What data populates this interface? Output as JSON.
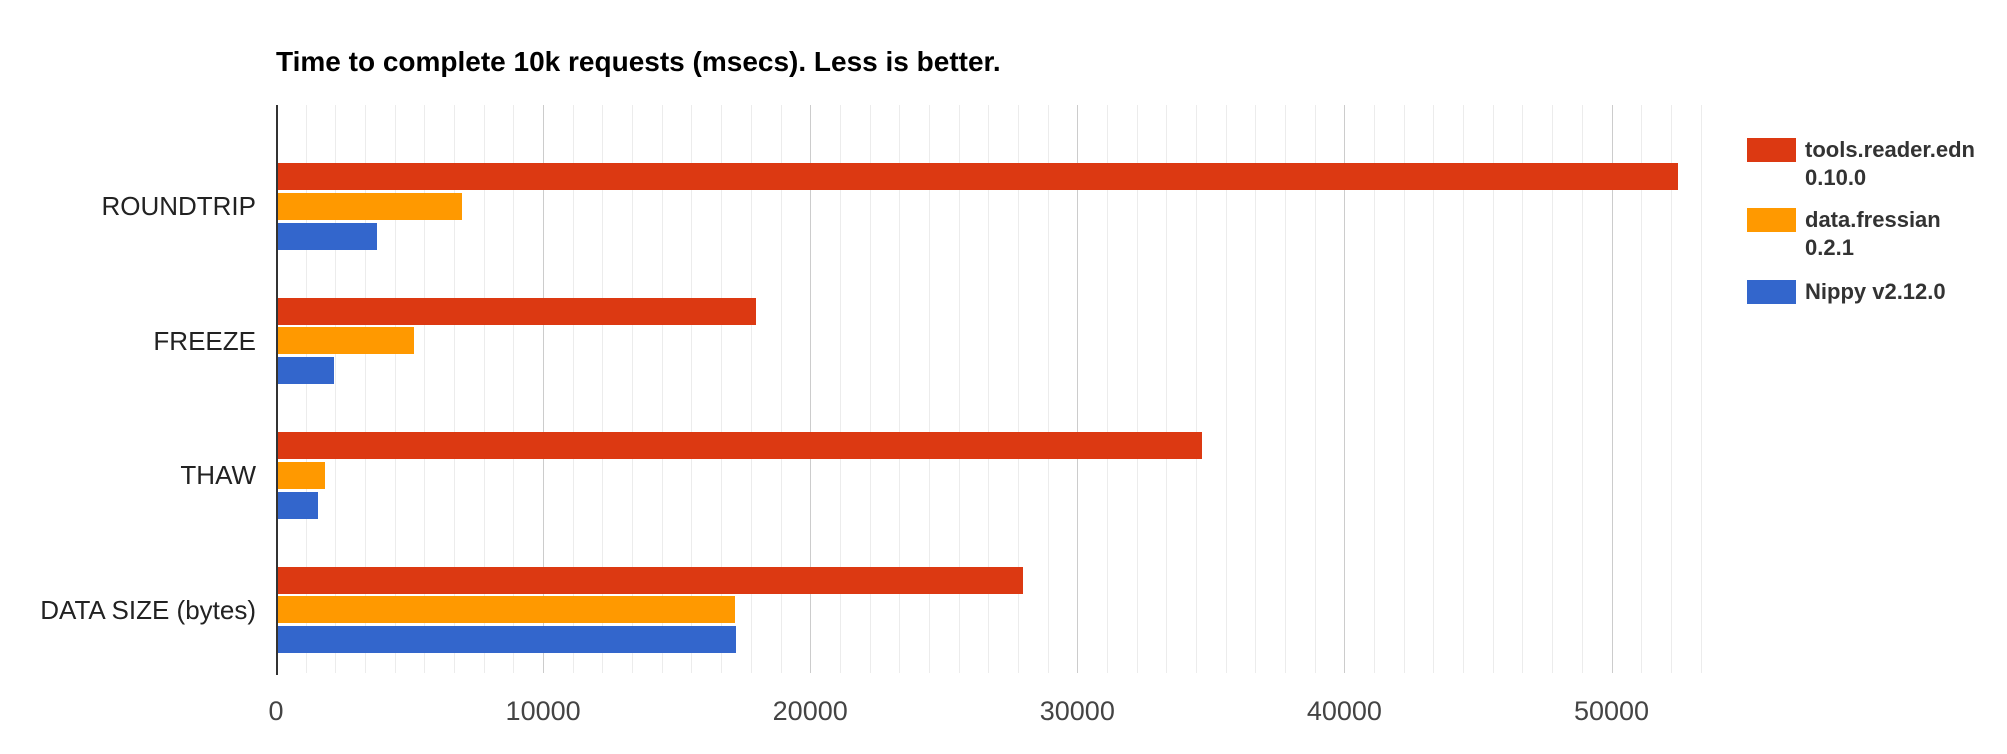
{
  "chart_data": {
    "type": "bar",
    "orientation": "horizontal",
    "title": "Time to complete 10k requests (msecs). Less is better.",
    "xlabel": "",
    "ylabel": "",
    "categories": [
      "ROUNDTRIP",
      "FREEZE",
      "THAW",
      "DATA SIZE (bytes)"
    ],
    "category_ids": [
      "roundtrip",
      "freeze",
      "thaw",
      "data-size-bytes"
    ],
    "series": [
      {
        "id": "tools-reader-edn",
        "name": "tools.reader.edn 0.10.0",
        "legend_lines": [
          "tools.reader.edn",
          "0.10.0"
        ],
        "color": "#DC3912",
        "values": [
          52400,
          17900,
          34600,
          27900
        ]
      },
      {
        "id": "data-fressian",
        "name": "data.fressian 0.2.1",
        "legend_lines": [
          "data.fressian",
          "0.2.1"
        ],
        "color": "#FF9900",
        "values": [
          6900,
          5100,
          1750,
          17100
        ]
      },
      {
        "id": "nippy",
        "name": "Nippy v2.12.0",
        "legend_lines": [
          "Nippy v2.12.0"
        ],
        "color": "#3366CC",
        "values": [
          3700,
          2100,
          1500,
          17150
        ]
      }
    ],
    "x_axis": {
      "ticks": [
        0,
        10000,
        20000,
        30000,
        40000,
        50000
      ],
      "tick_labels": [
        "0",
        "10000",
        "20000",
        "30000",
        "40000",
        "50000"
      ],
      "lim": [
        0,
        53500
      ],
      "minor_gridline_step": 1111.11
    },
    "grid": true,
    "legend_position": "right",
    "colors": {
      "series_red": "#DC3912",
      "series_orange": "#FF9900",
      "series_blue": "#3366CC",
      "gridline_minor": "#ececec",
      "gridline_major": "#cccccc",
      "axis_baseline": "#333333",
      "tick_label": "#444444",
      "category_label": "#222222",
      "legend_text": "#333333",
      "title_text": "#000000"
    }
  }
}
